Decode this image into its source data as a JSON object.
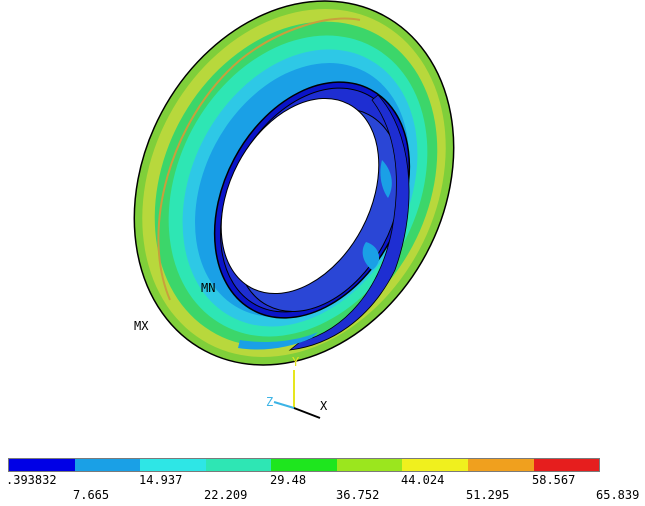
{
  "markers": {
    "min_label": "MN",
    "max_label": "MX"
  },
  "triad": {
    "y_label": "Y",
    "z_label": "Z",
    "x_label": "X"
  },
  "legend": {
    "colors": [
      "#0000e6",
      "#1aa0e6",
      "#2ee6e6",
      "#2ee6b4",
      "#1ee61e",
      "#9be61e",
      "#f0f01e",
      "#f0a01e",
      "#e61e1e"
    ],
    "upper_ticks": [
      ".393832",
      "14.937",
      "29.48",
      "44.024",
      "58.567"
    ],
    "lower_ticks": [
      "7.665",
      "22.209",
      "36.752",
      "51.295",
      "65.839"
    ]
  },
  "colors": {
    "outer_ring": "#5cc8c8",
    "rim_edge": "#b4d23c",
    "inner_bore": "#1e2ed2",
    "deep_blue": "#0a14c8",
    "outline": "#000000",
    "triad_yellow": "#e6e61e",
    "triad_cyan": "#3cb4e6"
  }
}
